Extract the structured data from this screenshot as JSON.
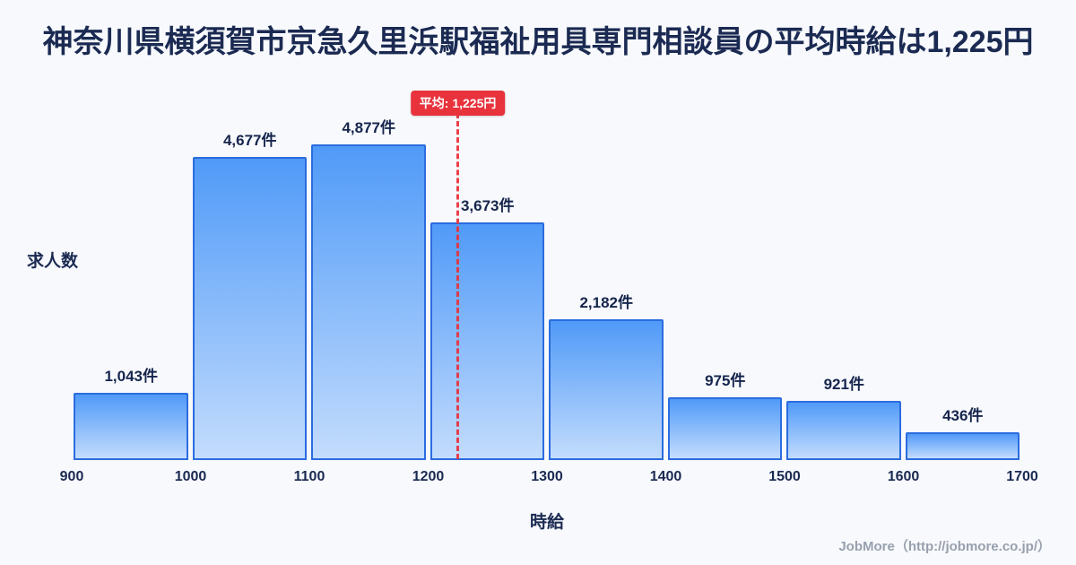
{
  "title": "神奈川県横須賀市京急久里浜駅福祉用具専門相談員の平均時給は1,225円",
  "footer": "JobMore（http://jobmore.co.jp/）",
  "chart_data": {
    "type": "bar",
    "title": "神奈川県横須賀市京急久里浜駅福祉用具専門相談員の平均時給は1,225円",
    "xlabel": "時給",
    "ylabel": "求人数",
    "x_range": [
      900,
      1700
    ],
    "bin_width": 100,
    "x_tick_labels": [
      "900",
      "1000",
      "1100",
      "1200",
      "1300",
      "1400",
      "1500",
      "1600",
      "1700"
    ],
    "values": [
      1043,
      4677,
      4877,
      3673,
      2182,
      975,
      921,
      436
    ],
    "value_labels": [
      "1,043件",
      "4,677件",
      "4,877件",
      "3,673件",
      "2,182件",
      "975件",
      "921件",
      "436件"
    ],
    "average": {
      "value": 1225,
      "label": "平均: 1,225円"
    },
    "grid": false,
    "legend_position": "none",
    "colors": {
      "bar_top": "#509af8",
      "bar_bottom": "#c3dcfd",
      "bar_border": "#2b6cdf",
      "average_line": "#e8323c",
      "average_badge_bg": "#e8323c",
      "average_badge_text": "#ffffff",
      "title_text": "#1b2a52",
      "background": "#f7f9fc"
    }
  }
}
